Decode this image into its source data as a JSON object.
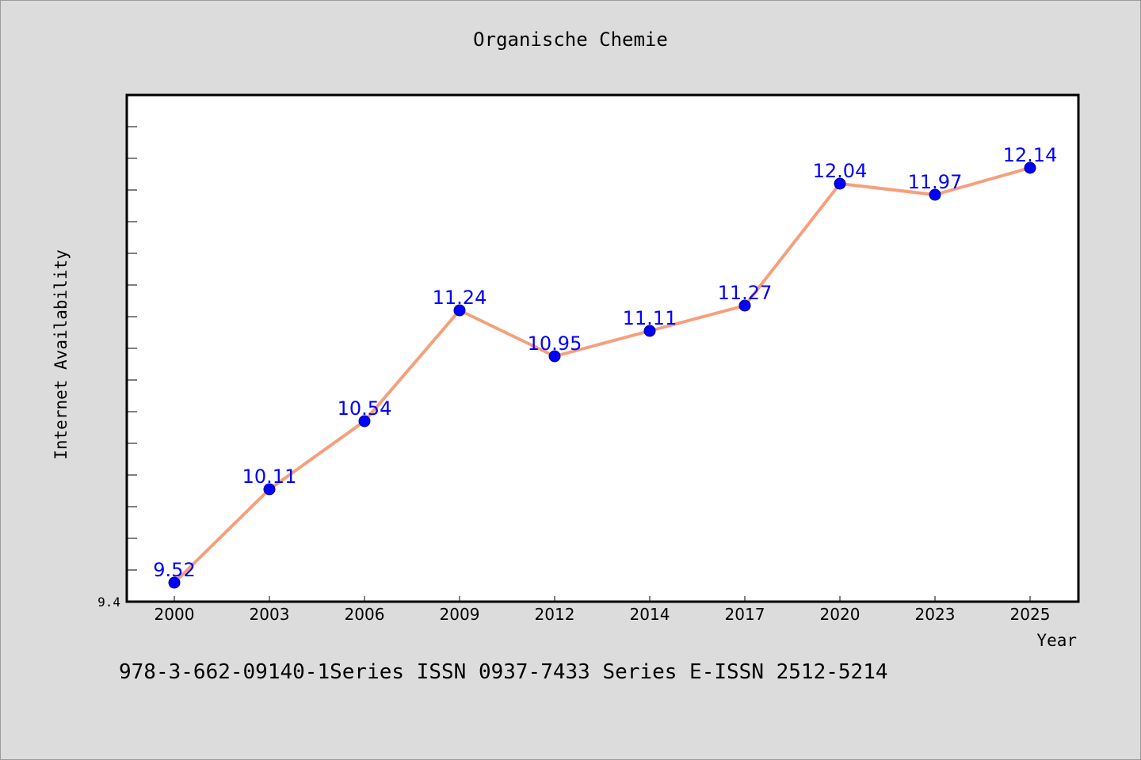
{
  "chart_data": {
    "type": "line",
    "title": "Organische Chemie",
    "xlabel": "Year",
    "ylabel": "Internet Availability",
    "categories": [
      "2000",
      "2003",
      "2006",
      "2009",
      "2012",
      "2014",
      "2017",
      "2020",
      "2023",
      "2025"
    ],
    "series": [
      {
        "values": [
          9.52,
          10.11,
          10.54,
          11.24,
          10.95,
          11.11,
          11.27,
          12.04,
          11.97,
          12.14
        ]
      }
    ],
    "ylim": [
      9.4,
      12.6
    ],
    "ytick_labels": [
      "9.4"
    ],
    "grid": false,
    "legend": "none",
    "colors": {
      "line": "#f4a07c",
      "marker": "#0000ff",
      "label": "#0000ff",
      "background": "#dcdcdc",
      "plot_background": "#ffffff"
    }
  },
  "footer": {
    "text": "978-3-662-09140-1Series ISSN 0937-7433 Series E-ISSN 2512-5214"
  }
}
